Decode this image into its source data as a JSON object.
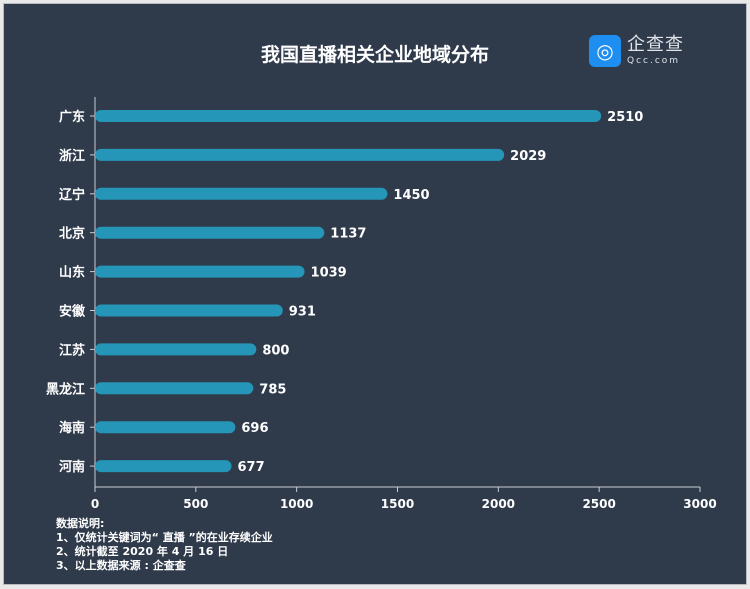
{
  "logo": {
    "cn": "企查查",
    "en": "Qcc.com"
  },
  "notes": {
    "heading": "数据说明:",
    "lines": [
      "1、仅统计关键词为“ 直播 ”的在业存续企业",
      "2、统计截至 2020 年 4 月 16 日",
      "3、以上数据来源 : 企查查"
    ]
  },
  "colors": {
    "bar": "#2596b8",
    "background": "#2f3a4b",
    "text": "#ffffff"
  },
  "chart_data": {
    "type": "bar",
    "orientation": "horizontal",
    "title": "我国直播相关企业地域分布",
    "categories": [
      "广东",
      "浙江",
      "辽宁",
      "北京",
      "山东",
      "安徽",
      "江苏",
      "黑龙江",
      "海南",
      "河南"
    ],
    "values": [
      2510,
      2029,
      1450,
      1137,
      1039,
      931,
      800,
      785,
      696,
      677
    ],
    "xlim": [
      0,
      3000
    ],
    "xticks": [
      0,
      500,
      1000,
      1500,
      2000,
      2500,
      3000
    ],
    "grid": false,
    "data_labels": true
  }
}
